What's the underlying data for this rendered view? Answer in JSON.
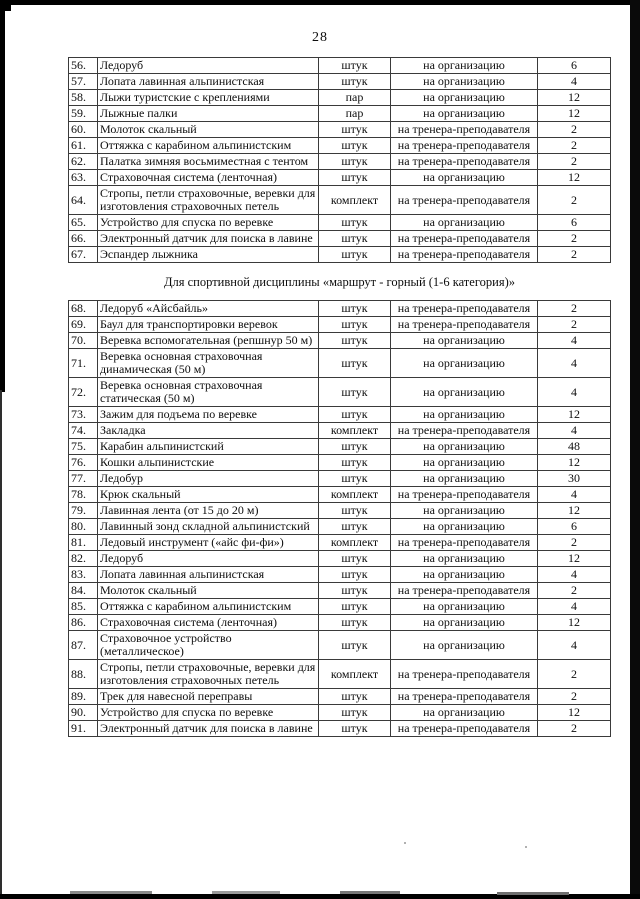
{
  "page": {
    "number": "28"
  },
  "section": {
    "title": "Для спортивной дисциплины «маршрут - горный (1-6 категория)»"
  },
  "table1": {
    "rows": [
      {
        "num": "56.",
        "name": "Ледоруб",
        "unit": "штук",
        "alloc": "на организацию",
        "qty": "6"
      },
      {
        "num": "57.",
        "name": "Лопата лавинная альпинистская",
        "unit": "штук",
        "alloc": "на организацию",
        "qty": "4"
      },
      {
        "num": "58.",
        "name": "Лыжи туристские с креплениями",
        "unit": "пар",
        "alloc": "на организацию",
        "qty": "12"
      },
      {
        "num": "59.",
        "name": "Лыжные палки",
        "unit": "пар",
        "alloc": "на организацию",
        "qty": "12"
      },
      {
        "num": "60.",
        "name": "Молоток скальный",
        "unit": "штук",
        "alloc": "на тренера-преподавателя",
        "qty": "2"
      },
      {
        "num": "61.",
        "name": "Оттяжка с карабином альпинистским",
        "unit": "штук",
        "alloc": "на тренера-преподавателя",
        "qty": "2"
      },
      {
        "num": "62.",
        "name": "Палатка зимняя восьмиместная с тентом",
        "unit": "штук",
        "alloc": "на тренера-преподавателя",
        "qty": "2"
      },
      {
        "num": "63.",
        "name": "Страховочная система (ленточная)",
        "unit": "штук",
        "alloc": "на организацию",
        "qty": "12"
      },
      {
        "num": "64.",
        "name": "Стропы, петли страховочные, веревки для изготовления страховочных петель",
        "unit": "комплект",
        "alloc": "на тренера-преподавателя",
        "qty": "2"
      },
      {
        "num": "65.",
        "name": "Устройство для спуска по веревке",
        "unit": "штук",
        "alloc": "на организацию",
        "qty": "6"
      },
      {
        "num": "66.",
        "name": "Электронный датчик для поиска в лавине",
        "unit": "штук",
        "alloc": "на тренера-преподавателя",
        "qty": "2"
      },
      {
        "num": "67.",
        "name": "Эспандер лыжника",
        "unit": "штук",
        "alloc": "на тренера-преподавателя",
        "qty": "2"
      }
    ]
  },
  "table2": {
    "rows": [
      {
        "num": "68.",
        "name": "Ледоруб «Айсбайль»",
        "unit": "штук",
        "alloc": "на тренера-преподавателя",
        "qty": "2"
      },
      {
        "num": "69.",
        "name": "Баул для транспортировки веревок",
        "unit": "штук",
        "alloc": "на тренера-преподавателя",
        "qty": "2"
      },
      {
        "num": "70.",
        "name": "Веревка вспомогательная (репшнур 50 м)",
        "unit": "штук",
        "alloc": "на организацию",
        "qty": "4"
      },
      {
        "num": "71.",
        "name": "Веревка основная страховочная динамическая (50 м)",
        "unit": "штук",
        "alloc": "на организацию",
        "qty": "4"
      },
      {
        "num": "72.",
        "name": "Веревка основная страховочная статическая (50 м)",
        "unit": "штук",
        "alloc": "на организацию",
        "qty": "4"
      },
      {
        "num": "73.",
        "name": "Зажим для подъема по веревке",
        "unit": "штук",
        "alloc": "на организацию",
        "qty": "12"
      },
      {
        "num": "74.",
        "name": "Закладка",
        "unit": "комплект",
        "alloc": "на тренера-преподавателя",
        "qty": "4"
      },
      {
        "num": "75.",
        "name": "Карабин альпинистский",
        "unit": "штук",
        "alloc": "на организацию",
        "qty": "48"
      },
      {
        "num": "76.",
        "name": "Кошки альпинистские",
        "unit": "штук",
        "alloc": "на организацию",
        "qty": "12"
      },
      {
        "num": "77.",
        "name": "Ледобур",
        "unit": "штук",
        "alloc": "на организацию",
        "qty": "30"
      },
      {
        "num": "78.",
        "name": "Крюк скальный",
        "unit": "комплект",
        "alloc": "на тренера-преподавателя",
        "qty": "4"
      },
      {
        "num": "79.",
        "name": "Лавинная лента (от 15 до 20 м)",
        "unit": "штук",
        "alloc": "на организацию",
        "qty": "12"
      },
      {
        "num": "80.",
        "name": "Лавинный зонд складной альпинистский",
        "unit": "штук",
        "alloc": "на организацию",
        "qty": "6"
      },
      {
        "num": "81.",
        "name": "Ледовый инструмент («айс фи-фи»)",
        "unit": "комплект",
        "alloc": "на тренера-преподавателя",
        "qty": "2"
      },
      {
        "num": "82.",
        "name": "Ледоруб",
        "unit": "штук",
        "alloc": "на организацию",
        "qty": "12"
      },
      {
        "num": "83.",
        "name": "Лопата лавинная альпинистская",
        "unit": "штук",
        "alloc": "на организацию",
        "qty": "4"
      },
      {
        "num": "84.",
        "name": "Молоток скальный",
        "unit": "штук",
        "alloc": "на тренера-преподавателя",
        "qty": "2"
      },
      {
        "num": "85.",
        "name": "Оттяжка с карабином альпинистским",
        "unit": "штук",
        "alloc": "на организацию",
        "qty": "4"
      },
      {
        "num": "86.",
        "name": "Страховочная система (ленточная)",
        "unit": "штук",
        "alloc": "на организацию",
        "qty": "12"
      },
      {
        "num": "87.",
        "name": "Страховочное устройство (металлическое)",
        "unit": "штук",
        "alloc": "на организацию",
        "qty": "4"
      },
      {
        "num": "88.",
        "name": "Стропы, петли страховочные, веревки для изготовления страховочных петель",
        "unit": "комплект",
        "alloc": "на тренера-преподавателя",
        "qty": "2"
      },
      {
        "num": "89.",
        "name": "Трек для навесной переправы",
        "unit": "штук",
        "alloc": "на тренера-преподавателя",
        "qty": "2"
      },
      {
        "num": "90.",
        "name": "Устройство для спуска по веревке",
        "unit": "штук",
        "alloc": "на организацию",
        "qty": "12"
      },
      {
        "num": "91.",
        "name": "Электронный датчик для поиска в лавине",
        "unit": "штук",
        "alloc": "на тренера-преподавателя",
        "qty": "2"
      }
    ]
  }
}
